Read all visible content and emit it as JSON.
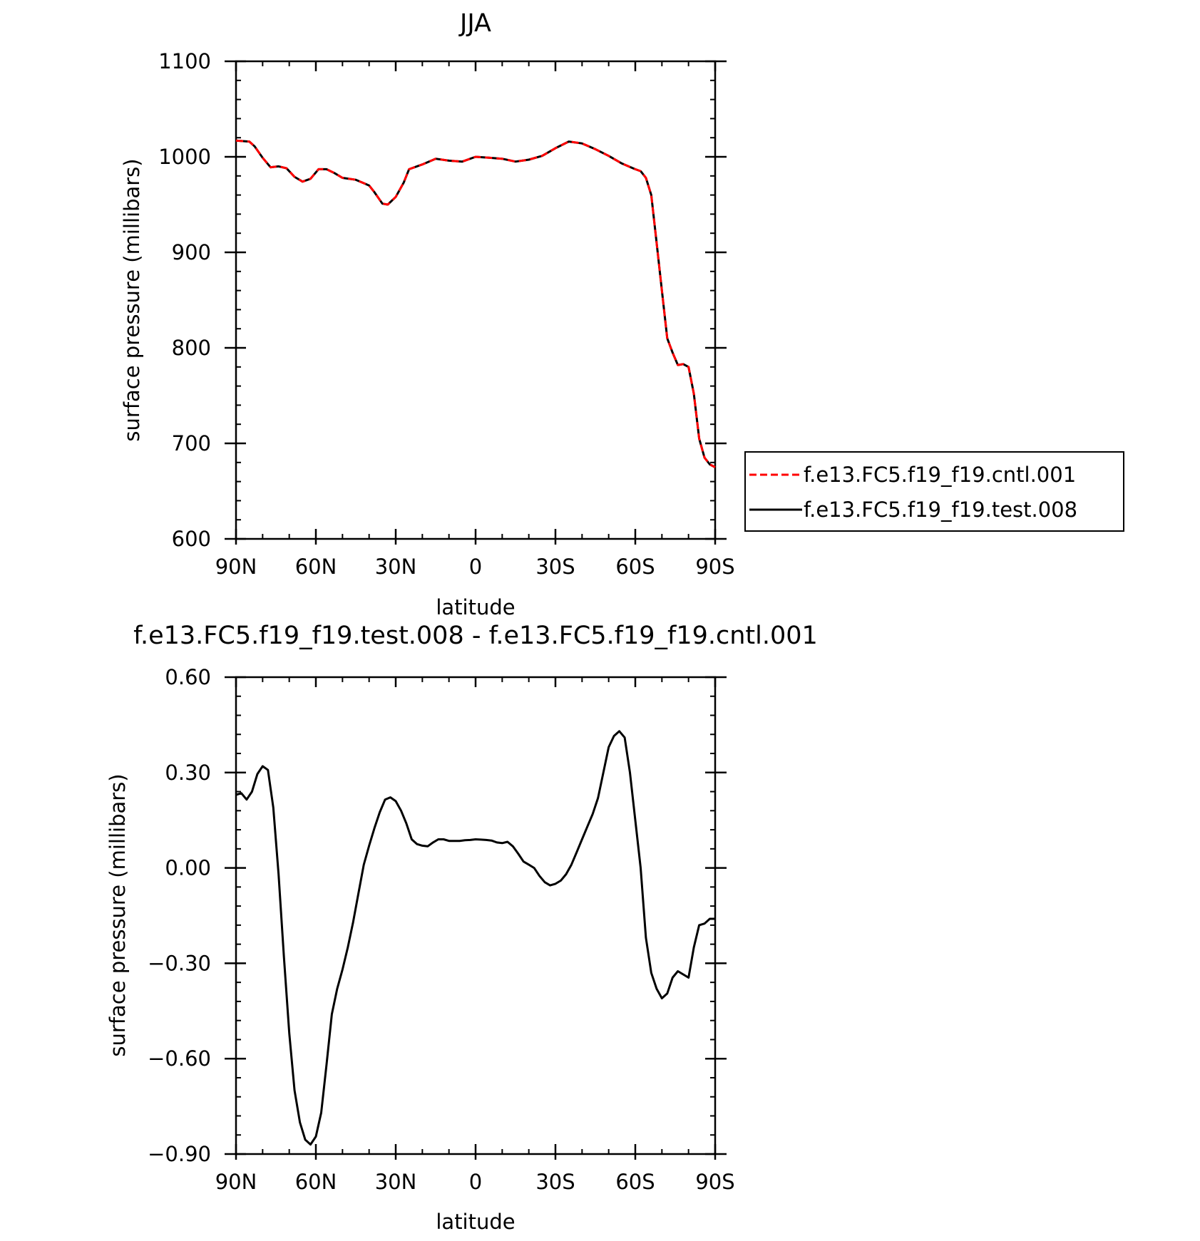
{
  "chart_data": [
    {
      "type": "line",
      "title": "JJA",
      "xlabel": "latitude",
      "ylabel": "surface pressure (millibars)",
      "xlim": [
        90,
        -90
      ],
      "ylim": [
        600,
        1100
      ],
      "x_tick_values": [
        90,
        60,
        30,
        0,
        -30,
        -60,
        -90
      ],
      "x_tick_labels": [
        "90N",
        "60N",
        "30N",
        "0",
        "30S",
        "60S",
        "90S"
      ],
      "y_tick_values": [
        600,
        700,
        800,
        900,
        1000,
        1100
      ],
      "y_tick_labels": [
        "600",
        "700",
        "800",
        "900",
        "1000",
        "1100"
      ],
      "legend": {
        "position": "right",
        "entries": [
          "f.e13.FC5.f19_f19.cntl.001",
          "f.e13.FC5.f19_f19.test.008"
        ]
      },
      "series": [
        {
          "name": "f.e13.FC5.f19_f19.cntl.001",
          "color": "#ff0000",
          "dash": "dashed",
          "x": [
            90,
            85,
            83,
            80,
            77,
            74,
            71,
            68,
            65,
            62,
            59,
            56,
            53,
            50,
            45,
            40,
            38,
            35,
            33,
            30,
            27,
            25,
            20,
            15,
            10,
            5,
            0,
            -5,
            -10,
            -15,
            -20,
            -25,
            -30,
            -35,
            -40,
            -45,
            -50,
            -55,
            -60,
            -62,
            -64,
            -66,
            -68,
            -70,
            -72,
            -74,
            -76,
            -78,
            -80,
            -82,
            -84,
            -86,
            -88,
            -90
          ],
          "y": [
            1017,
            1016,
            1011,
            999,
            989,
            990,
            988,
            979,
            974,
            977,
            987,
            987,
            983,
            978,
            976,
            970,
            963,
            951,
            950,
            958,
            973,
            987,
            992,
            998,
            996,
            995,
            1000,
            999,
            998,
            995,
            997,
            1001,
            1009,
            1016,
            1014,
            1008,
            1001,
            993,
            987,
            985,
            978,
            960,
            910,
            860,
            810,
            795,
            782,
            783,
            780,
            752,
            705,
            685,
            678,
            675
          ]
        },
        {
          "name": "f.e13.FC5.f19_f19.test.008",
          "color": "#000000",
          "dash": "solid",
          "x": [
            90,
            85,
            83,
            80,
            77,
            74,
            71,
            68,
            65,
            62,
            59,
            56,
            53,
            50,
            45,
            40,
            38,
            35,
            33,
            30,
            27,
            25,
            20,
            15,
            10,
            5,
            0,
            -5,
            -10,
            -15,
            -20,
            -25,
            -30,
            -35,
            -40,
            -45,
            -50,
            -55,
            -60,
            -62,
            -64,
            -66,
            -68,
            -70,
            -72,
            -74,
            -76,
            -78,
            -80,
            -82,
            -84,
            -86,
            -88,
            -90
          ],
          "y": [
            1017,
            1016,
            1011,
            999,
            989,
            990,
            988,
            979,
            974,
            977,
            987,
            987,
            983,
            978,
            976,
            970,
            963,
            951,
            950,
            958,
            973,
            987,
            992,
            998,
            996,
            995,
            1000,
            999,
            998,
            995,
            997,
            1001,
            1009,
            1016,
            1014,
            1008,
            1001,
            993,
            987,
            985,
            978,
            960,
            910,
            860,
            810,
            795,
            782,
            783,
            780,
            752,
            705,
            685,
            678,
            675
          ]
        }
      ]
    },
    {
      "type": "line",
      "title": "f.e13.FC5.f19_f19.test.008 - f.e13.FC5.f19_f19.cntl.001",
      "xlabel": "latitude",
      "ylabel": "surface pressure (millibars)",
      "xlim": [
        90,
        -90
      ],
      "ylim": [
        -0.9,
        0.6
      ],
      "x_tick_values": [
        90,
        60,
        30,
        0,
        -30,
        -60,
        -90
      ],
      "x_tick_labels": [
        "90N",
        "60N",
        "30N",
        "0",
        "30S",
        "60S",
        "90S"
      ],
      "y_tick_values": [
        -0.9,
        -0.6,
        -0.3,
        0.0,
        0.3,
        0.6
      ],
      "y_tick_labels": [
        "-0.90",
        "-0.60",
        "-0.30",
        "0.00",
        "0.30",
        "0.60"
      ],
      "series": [
        {
          "color": "#000000",
          "dash": "solid",
          "x": [
            90,
            88,
            86,
            84,
            82,
            80,
            78,
            76,
            74,
            72,
            70,
            68,
            66,
            64,
            62,
            60,
            58,
            56,
            54,
            52,
            50,
            48,
            46,
            44,
            42,
            40,
            38,
            36,
            34,
            32,
            30,
            28,
            26,
            24,
            22,
            20,
            18,
            16,
            14,
            12,
            10,
            8,
            6,
            4,
            2,
            0,
            -2,
            -4,
            -6,
            -8,
            -10,
            -12,
            -14,
            -16,
            -18,
            -20,
            -22,
            -24,
            -26,
            -28,
            -30,
            -32,
            -34,
            -36,
            -38,
            -40,
            -42,
            -44,
            -46,
            -48,
            -50,
            -52,
            -54,
            -56,
            -58,
            -60,
            -62,
            -64,
            -66,
            -68,
            -70,
            -72,
            -74,
            -76,
            -78,
            -80,
            -82,
            -84,
            -86,
            -88,
            -90
          ],
          "y": [
            0.23,
            0.235,
            0.215,
            0.24,
            0.295,
            0.32,
            0.308,
            0.19,
            -0.02,
            -0.28,
            -0.52,
            -0.7,
            -0.8,
            -0.855,
            -0.87,
            -0.845,
            -0.77,
            -0.62,
            -0.46,
            -0.38,
            -0.32,
            -0.25,
            -0.17,
            -0.08,
            0.01,
            0.07,
            0.125,
            0.175,
            0.215,
            0.222,
            0.21,
            0.18,
            0.14,
            0.09,
            0.075,
            0.07,
            0.068,
            0.08,
            0.09,
            0.09,
            0.085,
            0.085,
            0.085,
            0.087,
            0.088,
            0.09,
            0.089,
            0.088,
            0.086,
            0.08,
            0.078,
            0.082,
            0.068,
            0.045,
            0.02,
            0.01,
            0.0,
            -0.025,
            -0.045,
            -0.055,
            -0.05,
            -0.04,
            -0.02,
            0.01,
            0.05,
            0.09,
            0.13,
            0.17,
            0.22,
            0.3,
            0.38,
            0.415,
            0.43,
            0.41,
            0.3,
            0.15,
            0.0,
            -0.22,
            -0.33,
            -0.38,
            -0.41,
            -0.395,
            -0.345,
            -0.325,
            -0.335,
            -0.345,
            -0.25,
            -0.18,
            -0.175,
            -0.16,
            -0.16
          ]
        }
      ]
    }
  ]
}
